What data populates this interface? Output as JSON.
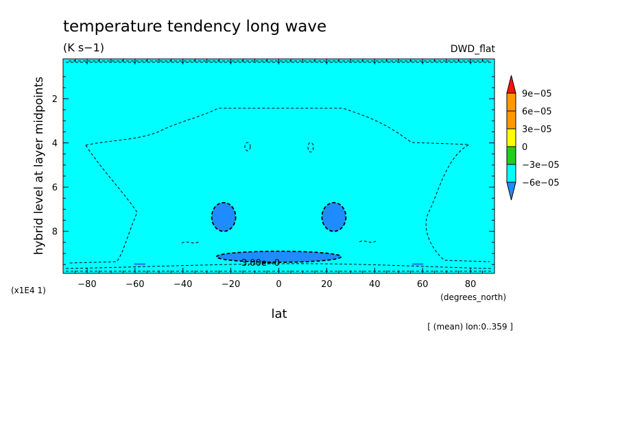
{
  "chart_data": {
    "type": "heatmap",
    "title": "temperature tendency long wave",
    "units": "(K s−1)",
    "dataset": "DWD_flat",
    "xlabel": "lat",
    "x_units": "(degrees_north)",
    "ylabel": "hybrid level at layer midpoints",
    "y_scale_note": "(x1E4 1)",
    "subtitle_note": "[ (mean) lon:0..359 ]",
    "contour_label": "3.00e−0",
    "xlim": [
      -90,
      90
    ],
    "ylim": [
      9.9,
      0.2
    ],
    "x_ticks": [
      -80,
      -60,
      -40,
      -20,
      0,
      20,
      40,
      60,
      80
    ],
    "x_tick_labels": [
      "−80",
      "−60",
      "−40",
      "−20",
      "0",
      "20",
      "40",
      "60",
      "80"
    ],
    "y_ticks": [
      2,
      4,
      6,
      8
    ],
    "y_tick_labels": [
      "2",
      "4",
      "6",
      "8"
    ],
    "colorbar": {
      "levels": [
        -6e-05,
        -3e-05,
        0,
        3e-05,
        6e-05,
        9e-05
      ],
      "labels": [
        "−6e−05",
        "−3e−05",
        "0",
        "3e−05",
        "6e−05",
        "9e−05"
      ],
      "colors": [
        "#1e8cff",
        "#00ffff",
        "#22cc22",
        "#ffff00",
        "#ff9900",
        "#ff1111"
      ]
    },
    "background_class_color": "#00ffff",
    "regions": [
      {
        "lat_range": [
          -28,
          -18
        ],
        "level_range": [
          6.7,
          8.0
        ],
        "color": "#1e8cff"
      },
      {
        "lat_range": [
          18,
          28
        ],
        "level_range": [
          6.7,
          8.0
        ],
        "color": "#1e8cff"
      },
      {
        "lat_range": [
          -26,
          26
        ],
        "level_range": [
          8.9,
          9.4
        ],
        "color": "#1e8cff"
      }
    ]
  }
}
